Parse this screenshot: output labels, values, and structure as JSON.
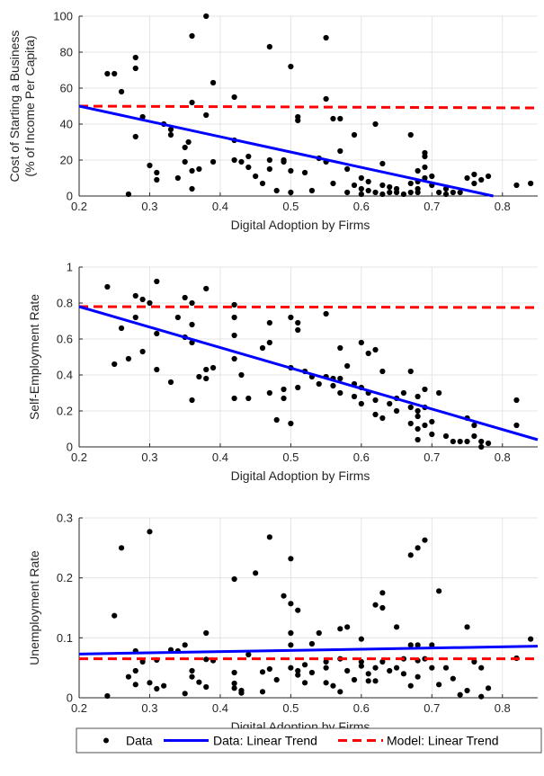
{
  "chart_data": [
    {
      "type": "scatter",
      "ylabel_lines": [
        "Cost of Starting a Business",
        "(% of Income Per Capita)"
      ],
      "xlabel": "Digital Adoption by Firms",
      "xlim": [
        0.2,
        0.85
      ],
      "ylim": [
        0,
        100
      ],
      "xticks": [
        0.2,
        0.3,
        0.4,
        0.5,
        0.6,
        0.7,
        0.8
      ],
      "yticks": [
        0,
        20,
        40,
        60,
        80,
        100
      ],
      "xtick_labels": [
        "0.2",
        "0.3",
        "0.4",
        "0.5",
        "0.6",
        "0.7",
        "0.8"
      ],
      "ytick_labels": [
        "0",
        "20",
        "40",
        "60",
        "80",
        "100"
      ],
      "grid": true,
      "data_trend": [
        [
          0.2,
          50
        ],
        [
          0.787,
          0
        ]
      ],
      "model_trend": [
        [
          0.2,
          50
        ],
        [
          0.85,
          49
        ]
      ],
      "points": [
        [
          0.24,
          68
        ],
        [
          0.25,
          68
        ],
        [
          0.26,
          58
        ],
        [
          0.27,
          1
        ],
        [
          0.28,
          77
        ],
        [
          0.28,
          71
        ],
        [
          0.28,
          33
        ],
        [
          0.29,
          44
        ],
        [
          0.3,
          17
        ],
        [
          0.31,
          13
        ],
        [
          0.31,
          9
        ],
        [
          0.32,
          40
        ],
        [
          0.33,
          37
        ],
        [
          0.33,
          34
        ],
        [
          0.34,
          10
        ],
        [
          0.35,
          19
        ],
        [
          0.35,
          27
        ],
        [
          0.355,
          30
        ],
        [
          0.36,
          89
        ],
        [
          0.36,
          52
        ],
        [
          0.36,
          14
        ],
        [
          0.36,
          4
        ],
        [
          0.37,
          15
        ],
        [
          0.38,
          100
        ],
        [
          0.38,
          45
        ],
        [
          0.39,
          63
        ],
        [
          0.39,
          19
        ],
        [
          0.42,
          31
        ],
        [
          0.42,
          20
        ],
        [
          0.42,
          55
        ],
        [
          0.43,
          19
        ],
        [
          0.44,
          16
        ],
        [
          0.44,
          22
        ],
        [
          0.45,
          11
        ],
        [
          0.46,
          7
        ],
        [
          0.47,
          83
        ],
        [
          0.47,
          20
        ],
        [
          0.47,
          15
        ],
        [
          0.48,
          3
        ],
        [
          0.49,
          20
        ],
        [
          0.49,
          19
        ],
        [
          0.5,
          72
        ],
        [
          0.5,
          14
        ],
        [
          0.5,
          2
        ],
        [
          0.51,
          44
        ],
        [
          0.51,
          42
        ],
        [
          0.52,
          13
        ],
        [
          0.53,
          3
        ],
        [
          0.54,
          21
        ],
        [
          0.55,
          54
        ],
        [
          0.55,
          88
        ],
        [
          0.55,
          19
        ],
        [
          0.56,
          43
        ],
        [
          0.56,
          7
        ],
        [
          0.57,
          43
        ],
        [
          0.57,
          25
        ],
        [
          0.58,
          15
        ],
        [
          0.58,
          2
        ],
        [
          0.59,
          34
        ],
        [
          0.59,
          6
        ],
        [
          0.6,
          10
        ],
        [
          0.6,
          4
        ],
        [
          0.6,
          1
        ],
        [
          0.61,
          8
        ],
        [
          0.61,
          3
        ],
        [
          0.62,
          2
        ],
        [
          0.62,
          40
        ],
        [
          0.63,
          18
        ],
        [
          0.63,
          6
        ],
        [
          0.63,
          1
        ],
        [
          0.64,
          5
        ],
        [
          0.64,
          2
        ],
        [
          0.65,
          4
        ],
        [
          0.65,
          2
        ],
        [
          0.66,
          1
        ],
        [
          0.67,
          34
        ],
        [
          0.67,
          7
        ],
        [
          0.67,
          2
        ],
        [
          0.68,
          14
        ],
        [
          0.68,
          8
        ],
        [
          0.68,
          4
        ],
        [
          0.68,
          2
        ],
        [
          0.69,
          24
        ],
        [
          0.69,
          22
        ],
        [
          0.69,
          16
        ],
        [
          0.69,
          10
        ],
        [
          0.7,
          11
        ],
        [
          0.7,
          6
        ],
        [
          0.71,
          2
        ],
        [
          0.72,
          4
        ],
        [
          0.72,
          1
        ],
        [
          0.73,
          2
        ],
        [
          0.75,
          10
        ],
        [
          0.76,
          12
        ],
        [
          0.76,
          7
        ],
        [
          0.77,
          9
        ],
        [
          0.74,
          2
        ],
        [
          0.78,
          11
        ],
        [
          0.82,
          6
        ],
        [
          0.84,
          7
        ]
      ]
    },
    {
      "type": "scatter",
      "ylabel": "Self-Employment Rate",
      "xlabel": "Digital Adoption by Firms",
      "xlim": [
        0.2,
        0.85
      ],
      "ylim": [
        0,
        1
      ],
      "xticks": [
        0.2,
        0.3,
        0.4,
        0.5,
        0.6,
        0.7,
        0.8
      ],
      "yticks": [
        0,
        0.2,
        0.4,
        0.6,
        0.8,
        1
      ],
      "xtick_labels": [
        "0.2",
        "0.3",
        "0.4",
        "0.5",
        "0.6",
        "0.7",
        "0.8"
      ],
      "ytick_labels": [
        "0",
        "0.2",
        "0.4",
        "0.6",
        "0.8",
        "1"
      ],
      "grid": true,
      "data_trend": [
        [
          0.2,
          0.78
        ],
        [
          0.85,
          0.04
        ]
      ],
      "model_trend": [
        [
          0.2,
          0.78
        ],
        [
          0.85,
          0.775
        ]
      ],
      "points": [
        [
          0.24,
          0.89
        ],
        [
          0.25,
          0.46
        ],
        [
          0.26,
          0.66
        ],
        [
          0.27,
          0.49
        ],
        [
          0.28,
          0.84
        ],
        [
          0.28,
          0.72
        ],
        [
          0.29,
          0.82
        ],
        [
          0.29,
          0.53
        ],
        [
          0.3,
          0.8
        ],
        [
          0.31,
          0.92
        ],
        [
          0.31,
          0.63
        ],
        [
          0.31,
          0.43
        ],
        [
          0.33,
          0.36
        ],
        [
          0.34,
          0.72
        ],
        [
          0.35,
          0.83
        ],
        [
          0.35,
          0.61
        ],
        [
          0.36,
          0.8
        ],
        [
          0.36,
          0.68
        ],
        [
          0.36,
          0.58
        ],
        [
          0.36,
          0.26
        ],
        [
          0.37,
          0.39
        ],
        [
          0.38,
          0.88
        ],
        [
          0.38,
          0.43
        ],
        [
          0.38,
          0.38
        ],
        [
          0.39,
          0.44
        ],
        [
          0.42,
          0.79
        ],
        [
          0.42,
          0.72
        ],
        [
          0.42,
          0.62
        ],
        [
          0.42,
          0.49
        ],
        [
          0.42,
          0.27
        ],
        [
          0.43,
          0.4
        ],
        [
          0.44,
          0.27
        ],
        [
          0.46,
          0.55
        ],
        [
          0.47,
          0.69
        ],
        [
          0.47,
          0.58
        ],
        [
          0.47,
          0.3
        ],
        [
          0.48,
          0.15
        ],
        [
          0.49,
          0.32
        ],
        [
          0.49,
          0.27
        ],
        [
          0.5,
          0.72
        ],
        [
          0.5,
          0.44
        ],
        [
          0.5,
          0.13
        ],
        [
          0.51,
          0.69
        ],
        [
          0.51,
          0.65
        ],
        [
          0.51,
          0.33
        ],
        [
          0.52,
          0.42
        ],
        [
          0.53,
          0.39
        ],
        [
          0.54,
          0.35
        ],
        [
          0.55,
          0.74
        ],
        [
          0.55,
          0.39
        ],
        [
          0.56,
          0.38
        ],
        [
          0.56,
          0.34
        ],
        [
          0.57,
          0.55
        ],
        [
          0.57,
          0.38
        ],
        [
          0.57,
          0.3
        ],
        [
          0.58,
          0.45
        ],
        [
          0.59,
          0.35
        ],
        [
          0.59,
          0.28
        ],
        [
          0.6,
          0.58
        ],
        [
          0.6,
          0.33
        ],
        [
          0.6,
          0.24
        ],
        [
          0.61,
          0.52
        ],
        [
          0.61,
          0.3
        ],
        [
          0.62,
          0.54
        ],
        [
          0.62,
          0.26
        ],
        [
          0.62,
          0.18
        ],
        [
          0.63,
          0.42
        ],
        [
          0.63,
          0.16
        ],
        [
          0.64,
          0.24
        ],
        [
          0.65,
          0.2
        ],
        [
          0.65,
          0.27
        ],
        [
          0.66,
          0.3
        ],
        [
          0.67,
          0.42
        ],
        [
          0.67,
          0.22
        ],
        [
          0.67,
          0.13
        ],
        [
          0.68,
          0.28
        ],
        [
          0.68,
          0.2
        ],
        [
          0.68,
          0.17
        ],
        [
          0.68,
          0.1
        ],
        [
          0.68,
          0.04
        ],
        [
          0.69,
          0.32
        ],
        [
          0.69,
          0.22
        ],
        [
          0.69,
          0.12
        ],
        [
          0.7,
          0.14
        ],
        [
          0.7,
          0.07
        ],
        [
          0.71,
          0.3
        ],
        [
          0.72,
          0.06
        ],
        [
          0.73,
          0.03
        ],
        [
          0.74,
          0.03
        ],
        [
          0.75,
          0.16
        ],
        [
          0.75,
          0.03
        ],
        [
          0.76,
          0.12
        ],
        [
          0.76,
          0.06
        ],
        [
          0.77,
          0.03
        ],
        [
          0.77,
          0.0
        ],
        [
          0.78,
          0.02
        ],
        [
          0.82,
          0.26
        ],
        [
          0.82,
          0.12
        ]
      ]
    },
    {
      "type": "scatter",
      "ylabel": "Unemployment Rate",
      "xlabel": "Digital Adoption by Firms",
      "xlim": [
        0.2,
        0.85
      ],
      "ylim": [
        0,
        0.3
      ],
      "xticks": [
        0.2,
        0.3,
        0.4,
        0.5,
        0.6,
        0.7,
        0.8
      ],
      "yticks": [
        0,
        0.1,
        0.2,
        0.3
      ],
      "xtick_labels": [
        "0.2",
        "0.3",
        "0.4",
        "0.5",
        "0.6",
        "0.7",
        "0.8"
      ],
      "ytick_labels": [
        "0",
        "0.1",
        "0.2",
        "0.3"
      ],
      "grid": true,
      "data_trend": [
        [
          0.2,
          0.073
        ],
        [
          0.85,
          0.086
        ]
      ],
      "model_trend": [
        [
          0.2,
          0.065
        ],
        [
          0.85,
          0.065
        ]
      ],
      "points": [
        [
          0.24,
          0.003
        ],
        [
          0.25,
          0.137
        ],
        [
          0.26,
          0.25
        ],
        [
          0.27,
          0.035
        ],
        [
          0.28,
          0.078
        ],
        [
          0.28,
          0.045
        ],
        [
          0.28,
          0.022
        ],
        [
          0.29,
          0.06
        ],
        [
          0.3,
          0.025
        ],
        [
          0.3,
          0.277
        ],
        [
          0.31,
          0.015
        ],
        [
          0.31,
          0.063
        ],
        [
          0.32,
          0.02
        ],
        [
          0.33,
          0.08
        ],
        [
          0.34,
          0.078
        ],
        [
          0.35,
          0.007
        ],
        [
          0.35,
          0.088
        ],
        [
          0.36,
          0.045
        ],
        [
          0.36,
          0.035
        ],
        [
          0.37,
          0.026
        ],
        [
          0.38,
          0.108
        ],
        [
          0.38,
          0.064
        ],
        [
          0.38,
          0.018
        ],
        [
          0.39,
          0.062
        ],
        [
          0.42,
          0.198
        ],
        [
          0.42,
          0.042
        ],
        [
          0.42,
          0.024
        ],
        [
          0.42,
          0.016
        ],
        [
          0.43,
          0.012
        ],
        [
          0.43,
          0.008
        ],
        [
          0.44,
          0.072
        ],
        [
          0.45,
          0.208
        ],
        [
          0.46,
          0.043
        ],
        [
          0.46,
          0.01
        ],
        [
          0.47,
          0.268
        ],
        [
          0.47,
          0.048
        ],
        [
          0.48,
          0.03
        ],
        [
          0.49,
          0.17
        ],
        [
          0.5,
          0.157
        ],
        [
          0.5,
          0.232
        ],
        [
          0.5,
          0.108
        ],
        [
          0.5,
          0.088
        ],
        [
          0.5,
          0.05
        ],
        [
          0.51,
          0.146
        ],
        [
          0.51,
          0.045
        ],
        [
          0.51,
          0.038
        ],
        [
          0.52,
          0.055
        ],
        [
          0.52,
          0.025
        ],
        [
          0.53,
          0.09
        ],
        [
          0.53,
          0.042
        ],
        [
          0.54,
          0.108
        ],
        [
          0.55,
          0.06
        ],
        [
          0.55,
          0.05
        ],
        [
          0.55,
          0.025
        ],
        [
          0.56,
          0.02
        ],
        [
          0.57,
          0.065
        ],
        [
          0.57,
          0.115
        ],
        [
          0.57,
          0.01
        ],
        [
          0.58,
          0.118
        ],
        [
          0.58,
          0.045
        ],
        [
          0.59,
          0.03
        ],
        [
          0.6,
          0.098
        ],
        [
          0.6,
          0.053
        ],
        [
          0.6,
          0.06
        ],
        [
          0.61,
          0.04
        ],
        [
          0.61,
          0.028
        ],
        [
          0.62,
          0.155
        ],
        [
          0.62,
          0.05
        ],
        [
          0.62,
          0.028
        ],
        [
          0.63,
          0.175
        ],
        [
          0.63,
          0.15
        ],
        [
          0.63,
          0.06
        ],
        [
          0.64,
          0.045
        ],
        [
          0.65,
          0.118
        ],
        [
          0.65,
          0.05
        ],
        [
          0.66,
          0.065
        ],
        [
          0.66,
          0.04
        ],
        [
          0.67,
          0.238
        ],
        [
          0.67,
          0.088
        ],
        [
          0.67,
          0.02
        ],
        [
          0.68,
          0.25
        ],
        [
          0.68,
          0.088
        ],
        [
          0.68,
          0.062
        ],
        [
          0.68,
          0.035
        ],
        [
          0.69,
          0.263
        ],
        [
          0.69,
          0.065
        ],
        [
          0.7,
          0.088
        ],
        [
          0.7,
          0.05
        ],
        [
          0.71,
          0.178
        ],
        [
          0.71,
          0.022
        ],
        [
          0.72,
          0.05
        ],
        [
          0.73,
          0.032
        ],
        [
          0.74,
          0.005
        ],
        [
          0.75,
          0.118
        ],
        [
          0.75,
          0.012
        ],
        [
          0.76,
          0.06
        ],
        [
          0.77,
          0.002
        ],
        [
          0.77,
          0.05
        ],
        [
          0.78,
          0.016
        ],
        [
          0.82,
          0.066
        ],
        [
          0.84,
          0.098
        ]
      ]
    }
  ],
  "legend": {
    "position": "bottom",
    "entries": [
      {
        "label": "Data",
        "kind": "marker",
        "color": "#000000"
      },
      {
        "label": "Data: Linear Trend",
        "kind": "solid",
        "color": "#0000ff"
      },
      {
        "label": "Model: Linear Trend",
        "kind": "dashed",
        "color": "#ff0000"
      }
    ]
  },
  "colors": {
    "data_trend": "#0000ff",
    "model_trend": "#ff0000",
    "points": "#000000",
    "grid": "#dedede",
    "axis": "#262626"
  }
}
